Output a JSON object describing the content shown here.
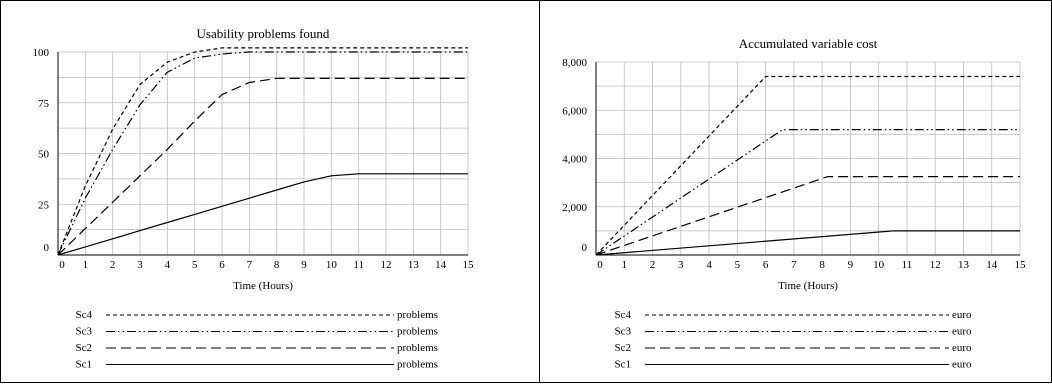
{
  "chart_data": [
    {
      "type": "line",
      "title": "Usability problems found",
      "xlabel": "Time (Hours)",
      "ylabel": "",
      "xlim": [
        0,
        15
      ],
      "ylim": [
        0,
        100
      ],
      "x_ticks": [
        "0",
        "1",
        "2",
        "3",
        "4",
        "5",
        "6",
        "7",
        "8",
        "9",
        "10",
        "11",
        "12",
        "13",
        "14",
        "15"
      ],
      "y_ticks": [
        "0",
        "25",
        "50",
        "75",
        "100"
      ],
      "grid": true,
      "legend_position": "bottom",
      "series": [
        {
          "name": "Sc4",
          "unit": "problems",
          "dash": "short-dash",
          "x": [
            0,
            1,
            2,
            3,
            4,
            5,
            6,
            7,
            8,
            9,
            10,
            11,
            12,
            13,
            14,
            15
          ],
          "y": [
            0,
            34,
            62,
            84,
            95,
            100,
            102,
            102,
            102,
            102,
            102,
            102,
            102,
            102,
            102,
            102
          ]
        },
        {
          "name": "Sc3",
          "unit": "problems",
          "dash": "dash-dot-dot",
          "x": [
            0,
            1,
            2,
            3,
            4,
            5,
            6,
            7,
            8,
            9,
            10,
            11,
            12,
            13,
            14,
            15
          ],
          "y": [
            0,
            28,
            52,
            74,
            90,
            97,
            99,
            100,
            100,
            100,
            100,
            100,
            100,
            100,
            100,
            100
          ]
        },
        {
          "name": "Sc2",
          "unit": "problems",
          "dash": "long-dash",
          "x": [
            0,
            1,
            2,
            3,
            4,
            5,
            6,
            7,
            8,
            9,
            10,
            11,
            12,
            13,
            14,
            15
          ],
          "y": [
            0,
            13,
            26,
            39,
            52,
            66,
            79,
            85,
            87,
            87,
            87,
            87,
            87,
            87,
            87,
            87
          ]
        },
        {
          "name": "Sc1",
          "unit": "problems",
          "dash": "solid",
          "x": [
            0,
            1,
            2,
            3,
            4,
            5,
            6,
            7,
            8,
            9,
            10,
            11,
            12,
            13,
            14,
            15
          ],
          "y": [
            0,
            4,
            8,
            12,
            16,
            20,
            24,
            28,
            32,
            36,
            39,
            40,
            40,
            40,
            40,
            40
          ]
        }
      ]
    },
    {
      "type": "line",
      "title": "Accumulated variable cost",
      "xlabel": "Time (Hours)",
      "ylabel": "",
      "xlim": [
        0,
        15
      ],
      "ylim": [
        0,
        8000
      ],
      "x_ticks": [
        "0",
        "1",
        "2",
        "3",
        "4",
        "5",
        "6",
        "7",
        "8",
        "9",
        "10",
        "11",
        "12",
        "13",
        "14",
        "15"
      ],
      "y_ticks": [
        "0",
        "2,000",
        "4,000",
        "6,000",
        "8,000"
      ],
      "grid": true,
      "legend_position": "bottom",
      "series": [
        {
          "name": "Sc4",
          "unit": "euro",
          "dash": "short-dash",
          "x": [
            0,
            6,
            15
          ],
          "y": [
            0,
            7400,
            7400
          ]
        },
        {
          "name": "Sc3",
          "unit": "euro",
          "dash": "dash-dot-dot",
          "x": [
            0,
            6.6,
            15
          ],
          "y": [
            0,
            5200,
            5200
          ]
        },
        {
          "name": "Sc2",
          "unit": "euro",
          "dash": "long-dash",
          "x": [
            0,
            8.2,
            15
          ],
          "y": [
            0,
            3250,
            3250
          ]
        },
        {
          "name": "Sc1",
          "unit": "euro",
          "dash": "solid",
          "x": [
            0,
            10.5,
            15
          ],
          "y": [
            0,
            1000,
            1000
          ]
        }
      ]
    }
  ]
}
